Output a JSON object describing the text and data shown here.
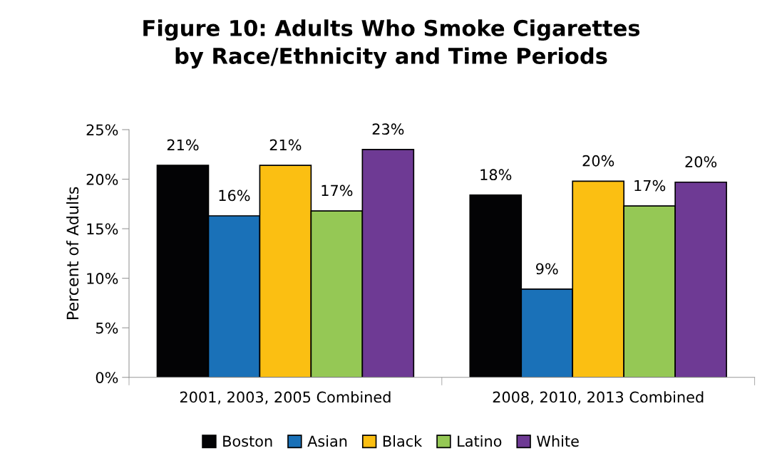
{
  "chart_data": {
    "type": "bar",
    "title": "Figure 10: Adults Who Smoke Cigarettes\nby Race/Ethnicity and Time Periods",
    "ylabel": "Percent of Adults",
    "categories": [
      "2001, 2003, 2005 Combined",
      "2008, 2010, 2013 Combined"
    ],
    "series": [
      {
        "name": "Boston",
        "color": "#030305",
        "values": [
          21.4,
          18.4
        ],
        "value_labels": [
          "21%",
          "18%"
        ]
      },
      {
        "name": "Asian",
        "color": "#1a71b8",
        "values": [
          16.3,
          8.9
        ],
        "value_labels": [
          "16%",
          "9%"
        ]
      },
      {
        "name": "Black",
        "color": "#fbbf12",
        "values": [
          21.4,
          19.8
        ],
        "value_labels": [
          "21%",
          "20%"
        ]
      },
      {
        "name": "Latino",
        "color": "#95c855",
        "values": [
          16.8,
          17.3
        ],
        "value_labels": [
          "17%",
          "17%"
        ]
      },
      {
        "name": "White",
        "color": "#6e3a94",
        "values": [
          23.0,
          19.7
        ],
        "value_labels": [
          "23%",
          "20%"
        ]
      }
    ],
    "ylim": [
      0,
      25
    ],
    "yticks": [
      {
        "value": 0,
        "label": "0%"
      },
      {
        "value": 5,
        "label": "5%"
      },
      {
        "value": 10,
        "label": "10%"
      },
      {
        "value": 15,
        "label": "15%"
      },
      {
        "value": 20,
        "label": "20%"
      },
      {
        "value": 25,
        "label": "25%"
      }
    ],
    "grid": false,
    "legend": "bottom"
  }
}
